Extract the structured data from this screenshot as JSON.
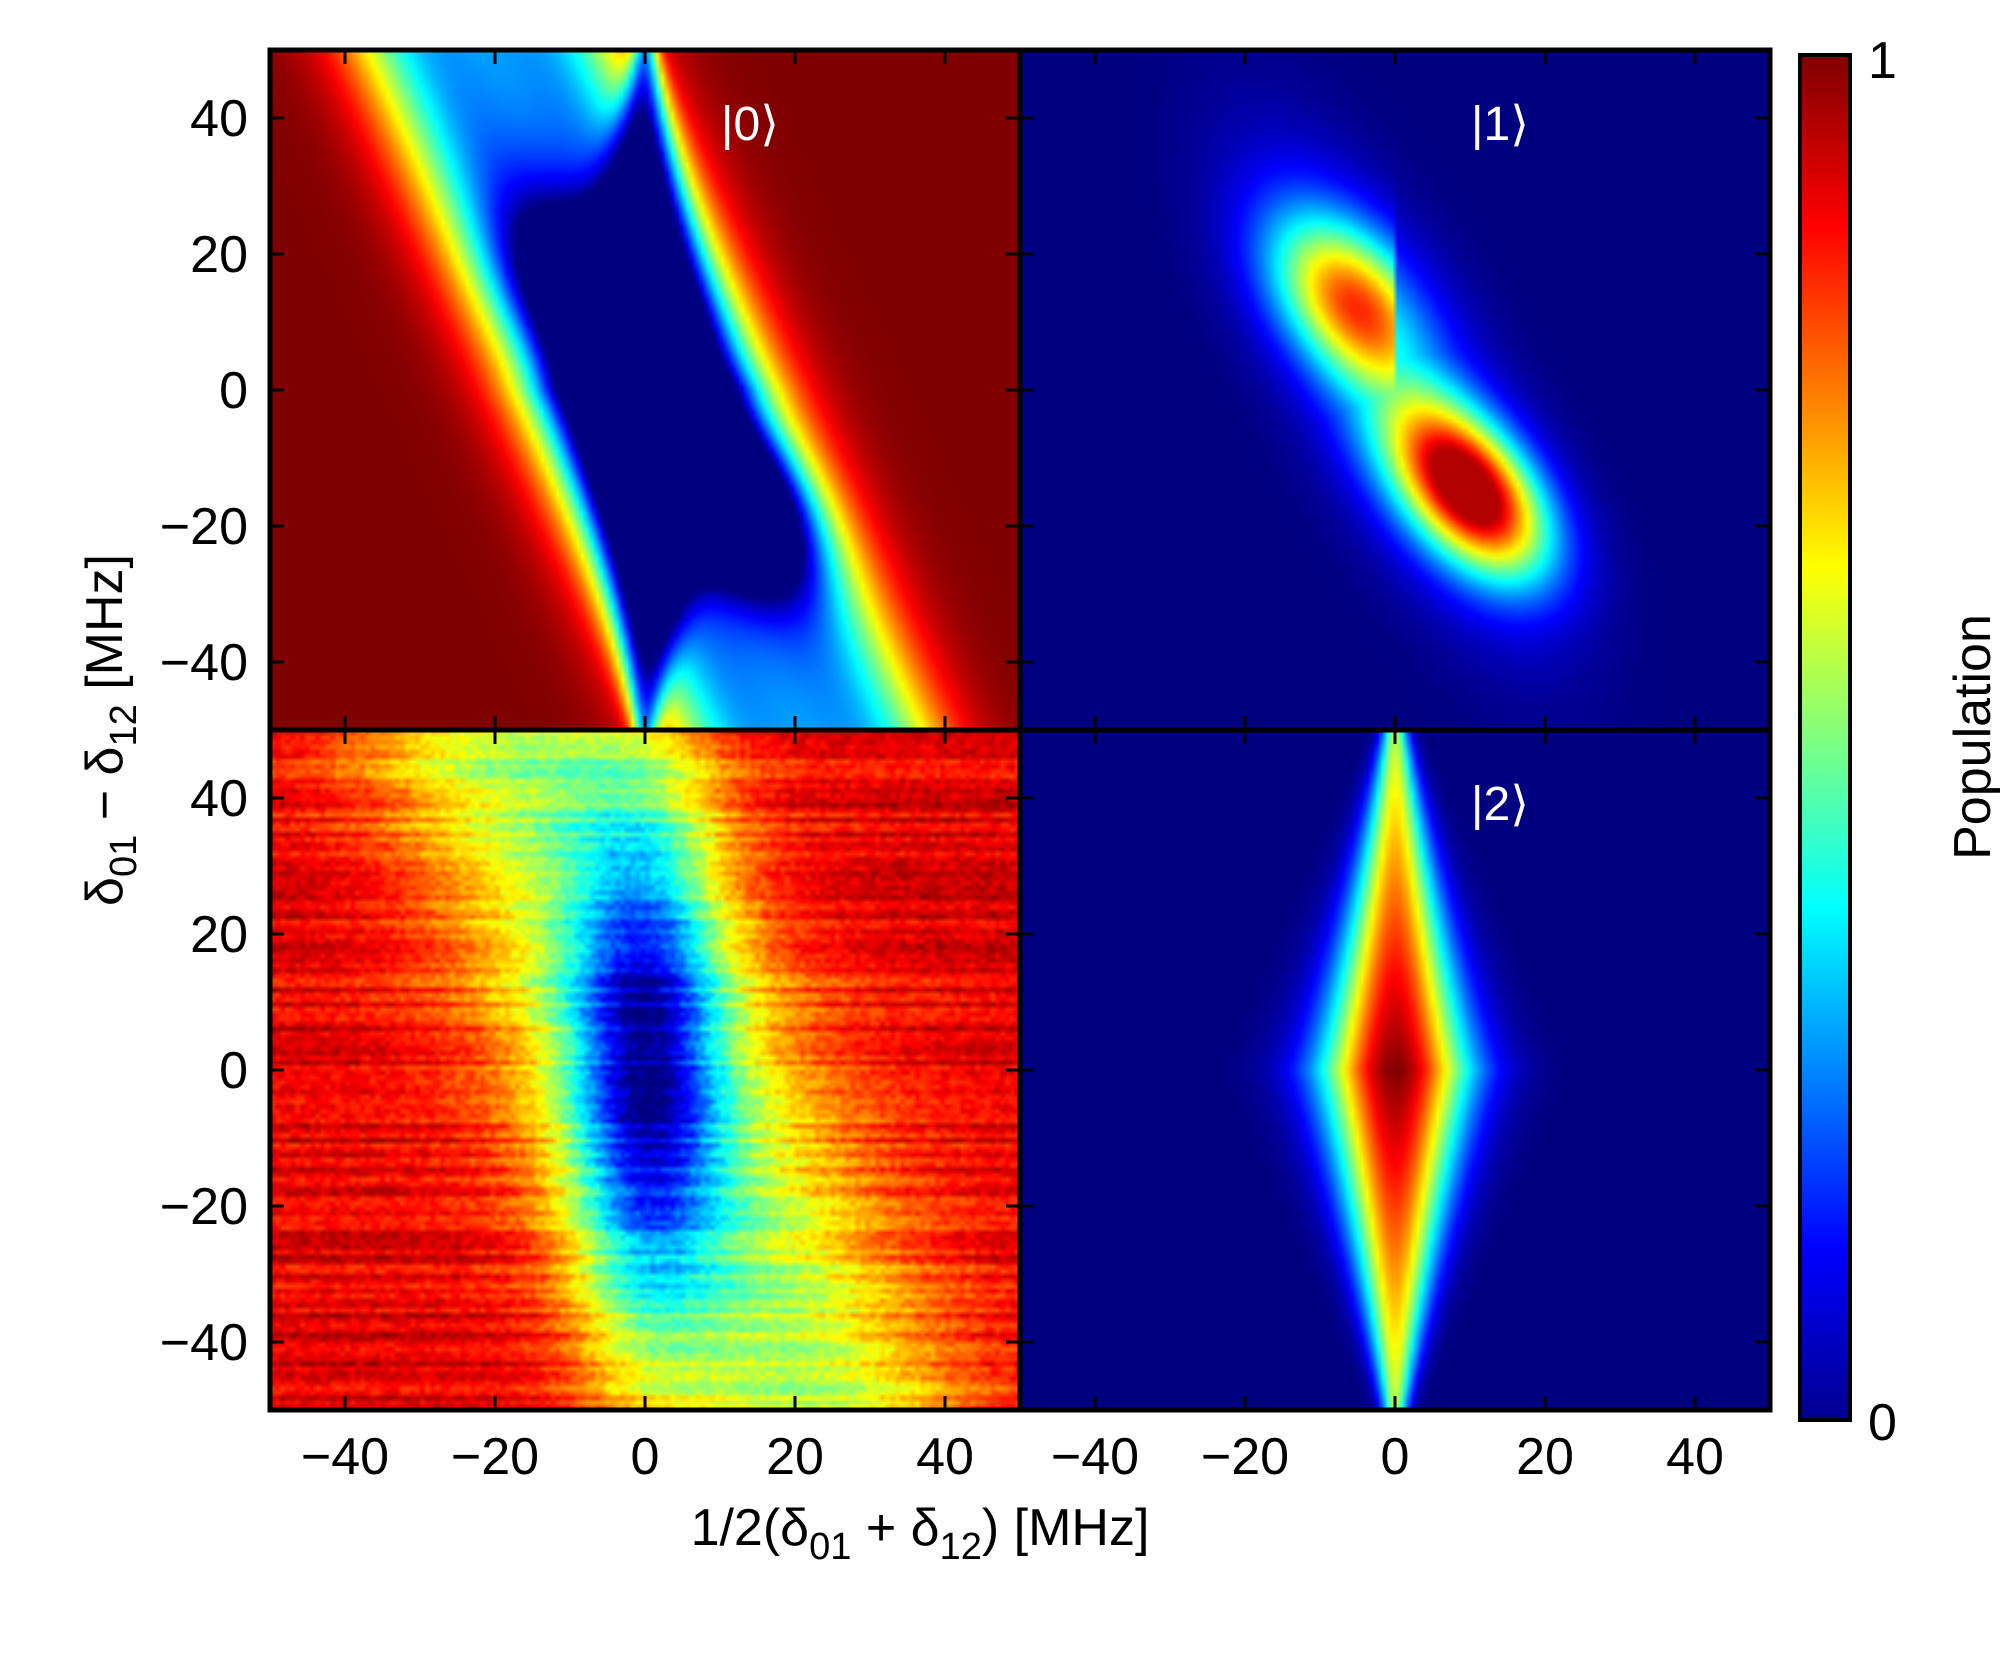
{
  "chart_data": {
    "type": "heatmap",
    "x_axis": {
      "label": "1/2(δ01 + δ12) [MHz]",
      "label_parts": {
        "pre": "1/2(δ",
        "sub1": "01",
        "mid": " + δ",
        "sub2": "12",
        "post": ") [MHz]"
      },
      "range": [
        -50,
        50
      ],
      "ticks": [
        -40,
        -20,
        0,
        20,
        40
      ],
      "tick_labels": [
        "−40",
        "−20",
        "0",
        "20",
        "40"
      ]
    },
    "y_axis": {
      "label": "δ01 − δ12 [MHz]",
      "label_parts": {
        "pre": "δ",
        "sub1": "01",
        "mid": " − δ",
        "sub2": "12",
        "post": " [MHz]"
      },
      "range": [
        -50,
        50
      ],
      "ticks": [
        -40,
        -20,
        0,
        20,
        40
      ],
      "tick_labels": [
        "−40",
        "−20",
        "0",
        "20",
        "40"
      ]
    },
    "colorbar": {
      "label": "Population",
      "min": 0,
      "max": 1,
      "min_label": "0",
      "max_label": "1",
      "colormap": "jet"
    },
    "panels": [
      {
        "id": "p0",
        "label": "|0⟩",
        "kind": "pop0",
        "position": "top-left",
        "noisy": false
      },
      {
        "id": "p1",
        "label": "|1⟩",
        "kind": "pop1",
        "position": "top-right",
        "noisy": false
      },
      {
        "id": "p0exp",
        "label": "",
        "kind": "pop0exp",
        "position": "bottom-left",
        "noisy": true
      },
      {
        "id": "p2",
        "label": "|2⟩",
        "kind": "pop2",
        "position": "bottom-right",
        "noisy": false
      }
    ]
  }
}
